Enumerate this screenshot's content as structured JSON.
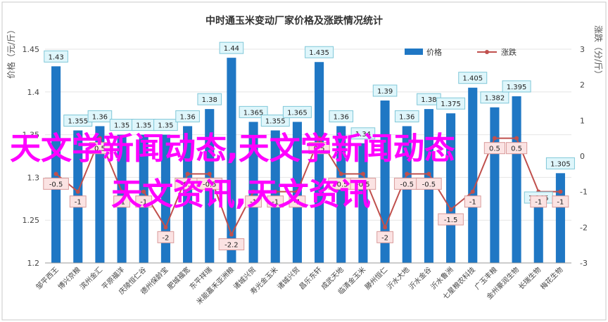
{
  "chart_data": {
    "type": "bar",
    "title": "中时通玉米变动厂家价格及涨跌情况统计",
    "ylabel": "价格（元/斤）",
    "y2label": "涨跌（分/斤）",
    "ylim": [
      1.2,
      1.45
    ],
    "y2lim": [
      -3,
      3
    ],
    "yticks": [
      "1.2",
      "1.25",
      "1.3",
      "1.35",
      "1.4",
      "1.45"
    ],
    "y2ticks": [
      "-3",
      "-2",
      "-1",
      "0",
      "1",
      "2",
      "3"
    ],
    "legend_position": "top-right",
    "categories": [
      "邹平西王",
      "博兴京粮",
      "滨州金汇",
      "平原福洋",
      "庆陵恒仁谷",
      "德州保龄宝",
      "肥城福宽",
      "东平祥瑞",
      "米能嘉禾亚洲粮",
      "诸城兴贸",
      "寿光金玉米",
      "诸城兴贸",
      "昌乐东轩",
      "成武天地",
      "临清金玉米",
      "滕州恒仁",
      "沂水大地",
      "沂水金谷",
      "沂水鲁洲",
      "七星粮农科技",
      "广玉丰粮",
      "金州豪润生物",
      "长瑞生物",
      "梅花生物"
    ],
    "series": [
      {
        "name": "价格",
        "color": "#1f77c4",
        "values": [
          1.43,
          1.355,
          1.36,
          1.35,
          1.35,
          1.35,
          1.36,
          1.38,
          1.44,
          1.365,
          1.355,
          1.365,
          1.435,
          1.36,
          1.34,
          1.39,
          1.36,
          1.38,
          1.375,
          1.405,
          1.382,
          1.395,
          1.265,
          1.305
        ]
      },
      {
        "name": "涨跌",
        "color": "#c0504d",
        "values": [
          -0.5,
          -1,
          0.5,
          -1,
          -1,
          -2,
          -0.5,
          -0.5,
          -2.2,
          -1,
          -1,
          -1,
          0.5,
          -0.5,
          -0.5,
          -2,
          -0.5,
          -0.5,
          -1.5,
          -1,
          0.5,
          0.5,
          -1,
          -1
        ]
      }
    ],
    "bar_labels": [
      "1.43",
      "1.355",
      "1.36",
      "1.35",
      "1.35",
      "1.35",
      "1.36",
      "1.38",
      "1.44",
      "1.365",
      "1.355",
      "1.365",
      "1.435",
      "1.36",
      "1.34",
      "1.39",
      "1.36",
      "1.38",
      "1.375",
      "1.405",
      "1.382",
      "1.395",
      "1.265",
      "1.305"
    ],
    "line_labels": [
      "-0.5",
      "-1",
      "0.5",
      "-1",
      "-1",
      "-2",
      "-0.5",
      "-0.5",
      "-2.2",
      "-1",
      "-1",
      "-1",
      "0.5",
      "-0.5",
      "-0.5",
      "-2",
      "-0.5",
      "-0.5",
      "-1.5",
      "-1",
      "0.5",
      "0.5",
      "-1",
      "-1"
    ]
  },
  "overlay": {
    "line1": "天文学新闻动态,天文学新闻动态",
    "line2": "天文资讯,天文资讯",
    "color": "#ff00ff"
  }
}
